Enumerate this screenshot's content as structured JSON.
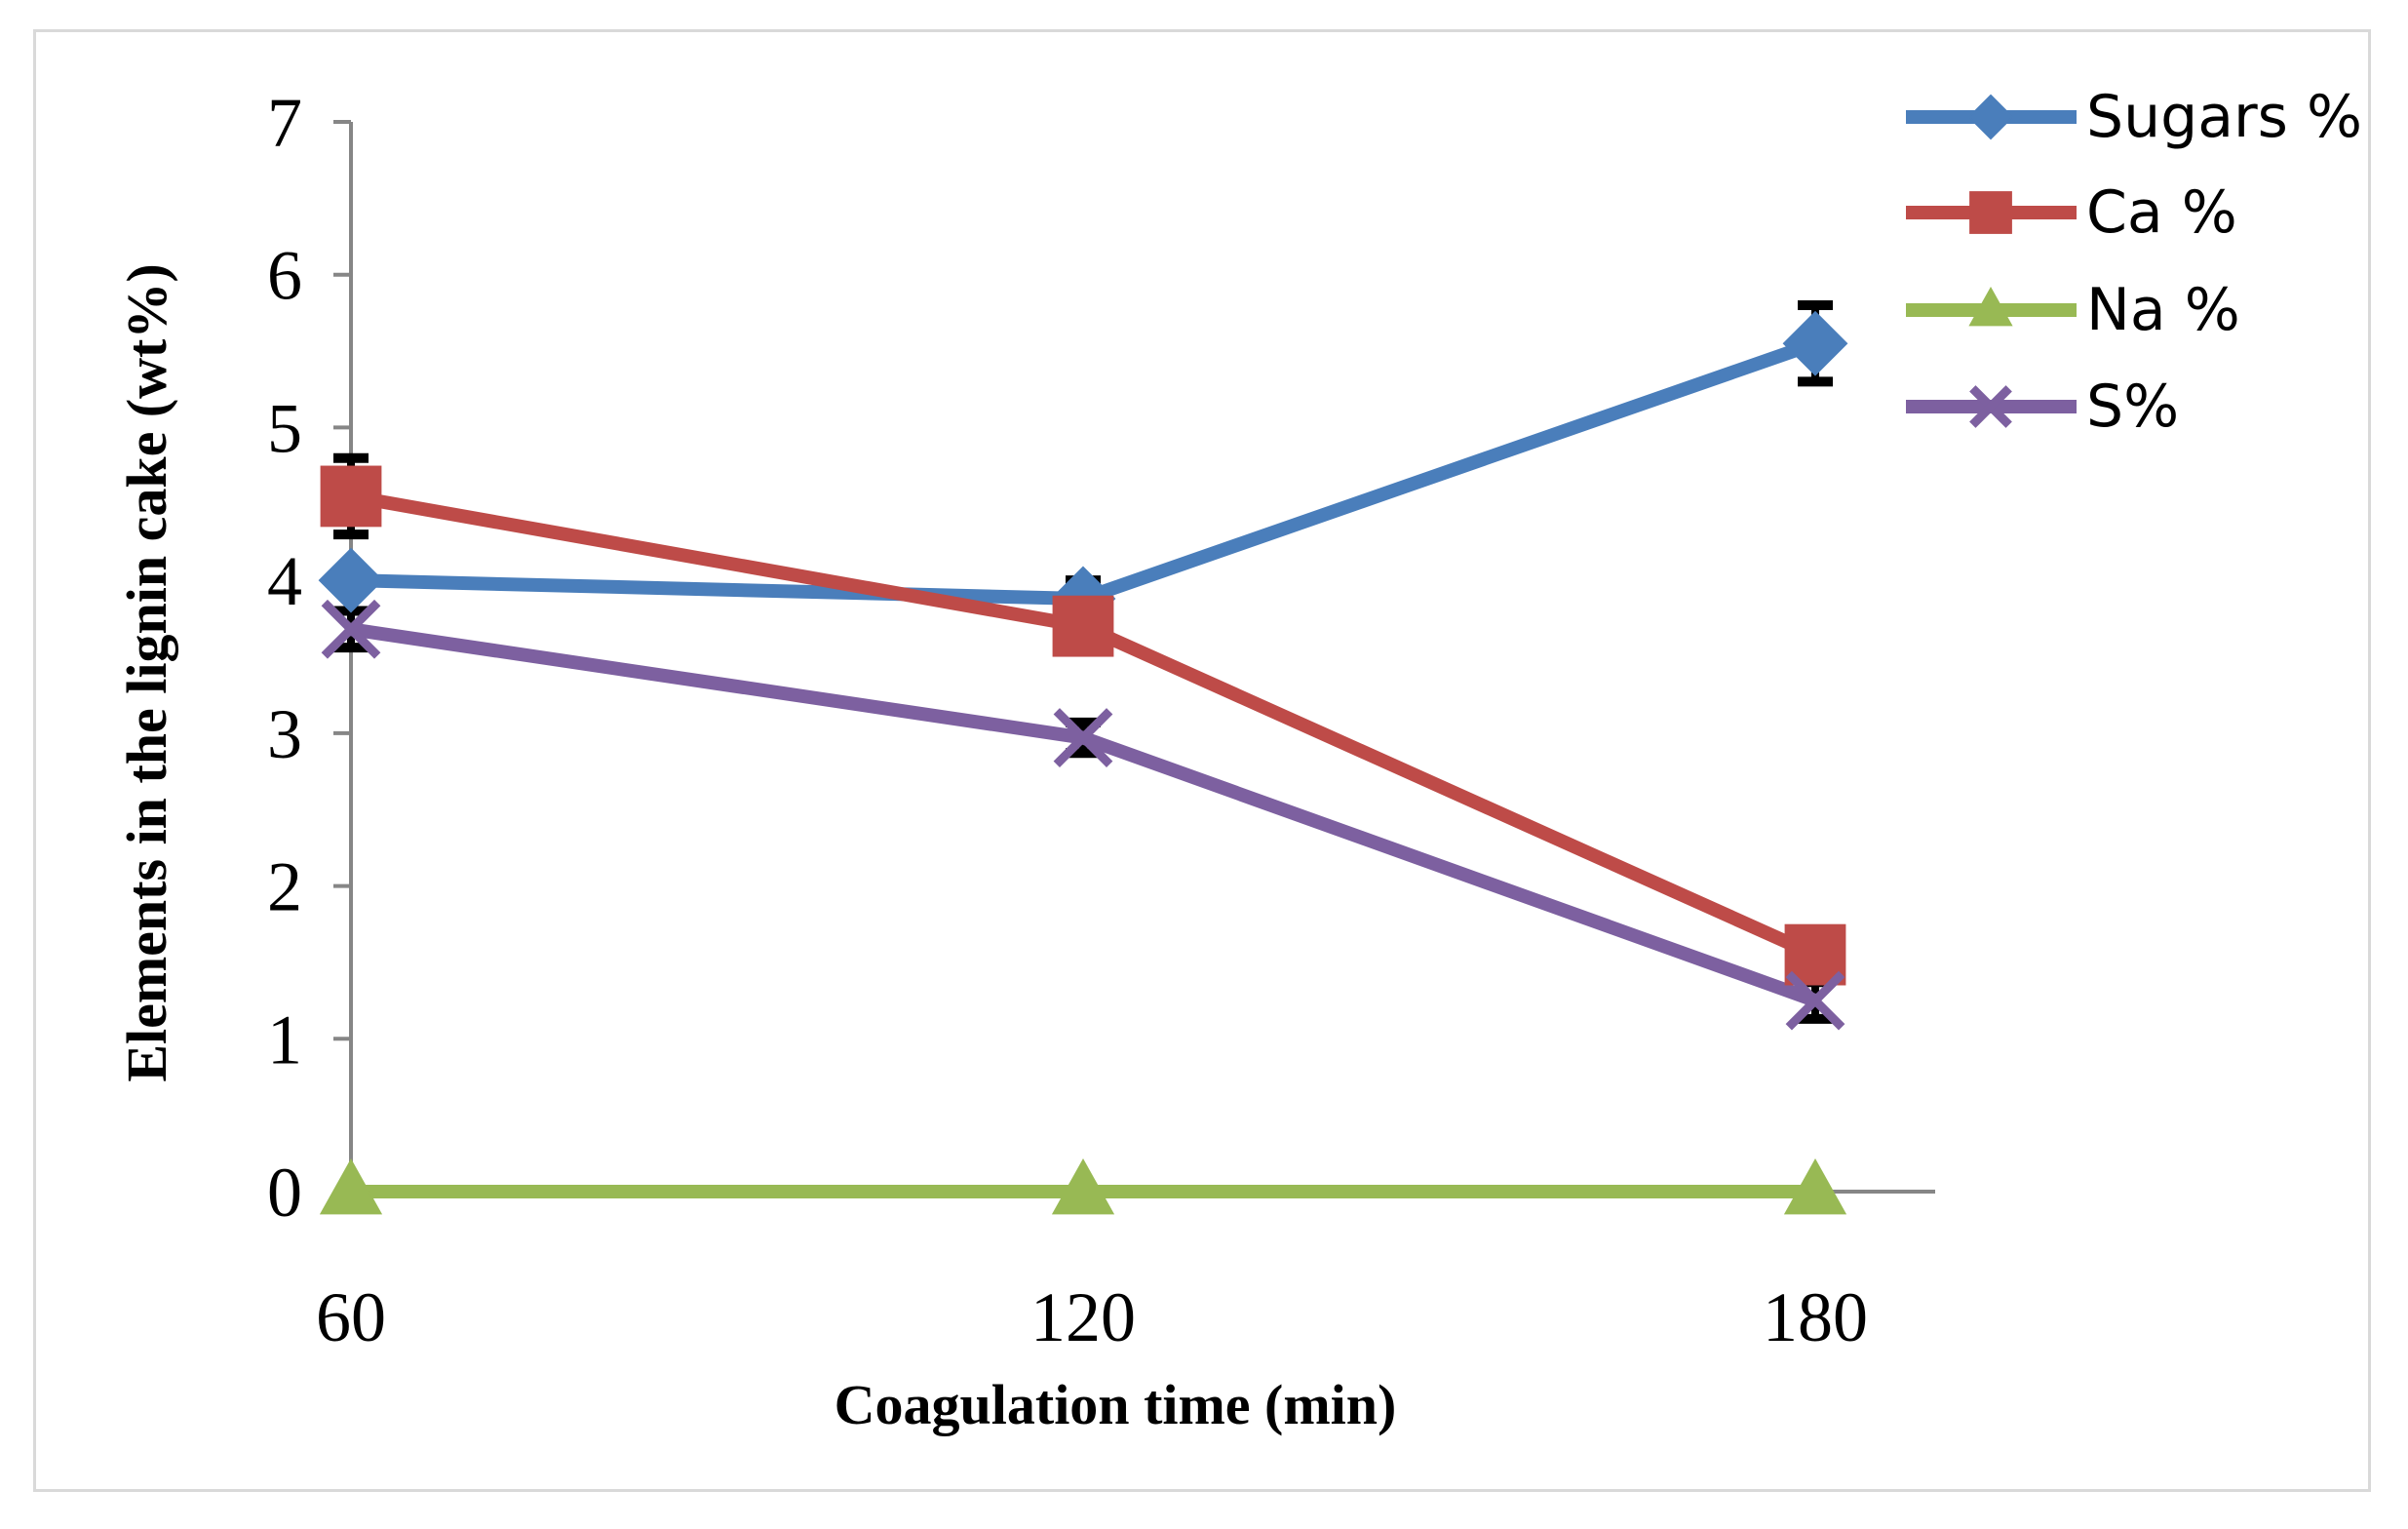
{
  "chart_data": {
    "type": "line",
    "title": "",
    "xlabel": "Coagulation time (min)",
    "ylabel": "Elements in the lignin cake (wt%)",
    "x": [
      60,
      120,
      180
    ],
    "x_tick_labels": [
      "60",
      "120",
      "180"
    ],
    "ylim": [
      0,
      7
    ],
    "y_ticks": [
      0,
      1,
      2,
      3,
      4,
      5,
      6,
      7
    ],
    "y_tick_labels": [
      "0",
      "1",
      "2",
      "3",
      "4",
      "5",
      "6",
      "7"
    ],
    "grid": false,
    "legend_position": "top-right",
    "series": [
      {
        "name": "Sugars %",
        "values": [
          4.0,
          3.88,
          5.55
        ],
        "errors": [
          0.0,
          0.12,
          0.25
        ],
        "color": "#4a7ebb",
        "marker": "diamond"
      },
      {
        "name": "Ca %",
        "values": [
          4.55,
          3.7,
          1.55
        ],
        "errors": [
          0.25,
          0.1,
          0.15
        ],
        "color": "#be4b48",
        "marker": "square"
      },
      {
        "name": "Na %",
        "values": [
          0.0,
          0.0,
          0.0
        ],
        "errors": [
          0.0,
          0.0,
          0.0
        ],
        "color": "#98b954",
        "marker": "triangle"
      },
      {
        "name": "S%",
        "values": [
          3.68,
          2.97,
          1.25
        ],
        "errors": [
          0.12,
          0.1,
          0.12
        ],
        "color": "#7d60a0",
        "marker": "x"
      }
    ]
  }
}
